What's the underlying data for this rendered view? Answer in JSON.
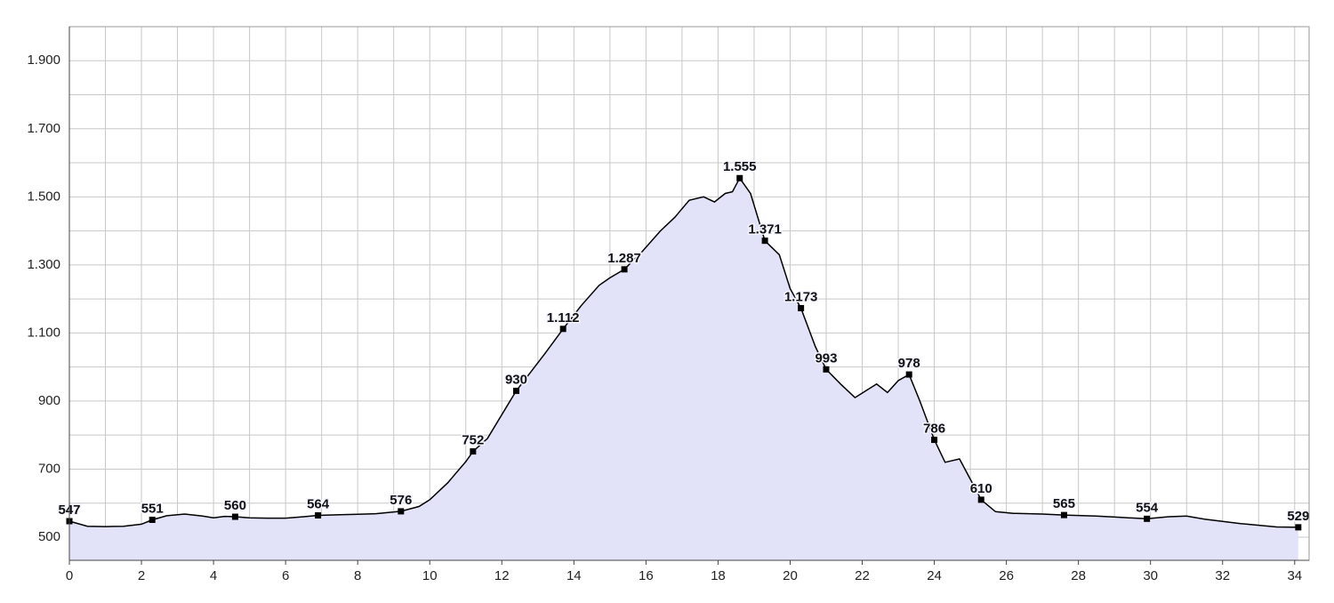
{
  "chart_data": {
    "type": "area",
    "xlim": [
      0,
      34.4
    ],
    "ylim": [
      432,
      2000
    ],
    "xticks": [
      0,
      2,
      4,
      6,
      8,
      10,
      12,
      14,
      16,
      18,
      20,
      22,
      24,
      26,
      28,
      30,
      32,
      34
    ],
    "x_minor_ticks": [
      1,
      3,
      5,
      7,
      9,
      11,
      13,
      15,
      17,
      19,
      21,
      23,
      25,
      27,
      29,
      31,
      33
    ],
    "yticks": [
      500,
      700,
      900,
      {
        "value": 1100,
        "label": "1.100"
      },
      {
        "value": 1300,
        "label": "1.300"
      },
      {
        "value": 1500,
        "label": "1.500"
      },
      {
        "value": 1700,
        "label": "1.700"
      },
      {
        "value": 1900,
        "label": "1.900"
      }
    ],
    "y_minor_ticks": [
      600,
      800,
      1000,
      1200,
      1400,
      1600,
      1800,
      2000
    ],
    "grid": true,
    "series": [
      {
        "color": "#000000",
        "fill": "#e2e2f8",
        "x": [
          0,
          0.5,
          1,
          1.5,
          2,
          2.3,
          2.7,
          3.2,
          3.7,
          4,
          4.3,
          4.6,
          5,
          5.5,
          6,
          6.5,
          6.9,
          7.5,
          8,
          8.5,
          9.2,
          9.7,
          10,
          10.5,
          11,
          11.2,
          11.6,
          12,
          12.4,
          12.8,
          13.2,
          13.7,
          14.2,
          14.7,
          15,
          15.4,
          15.9,
          16.4,
          16.8,
          17.2,
          17.6,
          17.9,
          18.2,
          18.4,
          18.6,
          18.9,
          19.3,
          19.7,
          20,
          20.3,
          20.7,
          21,
          21.4,
          21.8,
          22.1,
          22.4,
          22.7,
          23,
          23.3,
          23.6,
          24,
          24.3,
          24.7,
          25,
          25.3,
          25.7,
          26.2,
          27,
          27.6,
          28.5,
          29.2,
          29.9,
          30.5,
          31,
          31.5,
          32.5,
          33.5,
          34.1
        ],
        "values": [
          547,
          532,
          531,
          532,
          538,
          551,
          563,
          568,
          562,
          557,
          561,
          560,
          557,
          556,
          556,
          560,
          564,
          566,
          567,
          569,
          576,
          590,
          610,
          660,
          722,
          752,
          790,
          860,
          930,
          985,
          1040,
          1112,
          1180,
          1240,
          1262,
          1287,
          1340,
          1400,
          1440,
          1490,
          1500,
          1485,
          1510,
          1515,
          1555,
          1510,
          1371,
          1330,
          1230,
          1173,
          1060,
          993,
          950,
          910,
          930,
          950,
          925,
          960,
          978,
          900,
          786,
          720,
          730,
          670,
          610,
          575,
          570,
          568,
          565,
          562,
          558,
          554,
          560,
          562,
          553,
          540,
          530,
          529
        ]
      }
    ],
    "markers": {
      "color": "#000000",
      "x": [
        0,
        2.3,
        4.6,
        6.9,
        9.2,
        11.2,
        12.4,
        13.7,
        15.4,
        18.6,
        19.3,
        20.3,
        21,
        23.3,
        24,
        25.3,
        27.6,
        29.9,
        34.1
      ],
      "values": [
        547,
        551,
        560,
        564,
        576,
        752,
        930,
        1112,
        1287,
        1555,
        1371,
        1173,
        993,
        978,
        786,
        610,
        565,
        554,
        529
      ],
      "value_labels": [
        "547",
        "551",
        "560",
        "564",
        "576",
        "752",
        "930",
        "1.112",
        "1.287",
        "1.555",
        "1.371",
        "1.173",
        "993",
        "978",
        "786",
        "610",
        "565",
        "554",
        "529"
      ]
    }
  }
}
